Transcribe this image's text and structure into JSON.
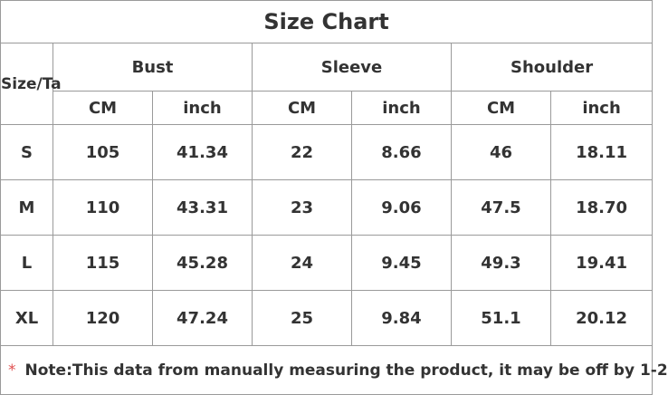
{
  "table": {
    "title": "Size Chart",
    "corner": "Size/Ta",
    "groups": [
      "Bust",
      "Sleeve",
      "Shoulder"
    ],
    "units": [
      "CM",
      "inch",
      "CM",
      "inch",
      "CM",
      "inch"
    ],
    "rows": [
      [
        "S",
        "105",
        "41.34",
        "22",
        "8.66",
        "46",
        "18.11"
      ],
      [
        "M",
        "110",
        "43.31",
        "23",
        "9.06",
        "47.5",
        "18.70"
      ],
      [
        "L",
        "115",
        "45.28",
        "24",
        "9.45",
        "49.3",
        "19.41"
      ],
      [
        "XL",
        "120",
        "47.24",
        "25",
        "9.84",
        "51.1",
        "20.12"
      ]
    ],
    "note_mark": "*",
    "note": "Note:This data from manually measuring the product, it may be off by 1-2"
  }
}
